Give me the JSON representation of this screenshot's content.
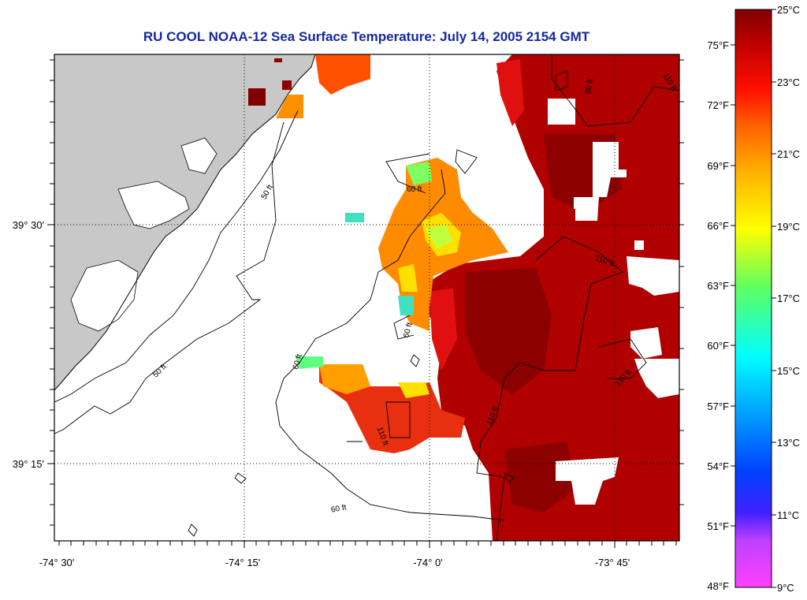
{
  "title": "RU COOL  NOAA-12  Sea Surface Temperature:  July 14, 2005 2154 GMT",
  "axes": {
    "x_ticks": [
      {
        "value": -74.5,
        "label": "-74° 30'"
      },
      {
        "value": -74.25,
        "label": "-74° 15'"
      },
      {
        "value": -74.0,
        "label": "-74° 0'"
      },
      {
        "value": -73.75,
        "label": "-73° 45'"
      }
    ],
    "y_ticks": [
      {
        "value": 39.5,
        "label": "39° 30'"
      },
      {
        "value": 39.25,
        "label": "39° 15'"
      }
    ]
  },
  "colorbar": {
    "celsius_labels": [
      "25°C",
      "23°C",
      "21°C",
      "19°C",
      "17°C",
      "15°C",
      "13°C",
      "11°C",
      "9°C"
    ],
    "fahrenheit_labels": [
      "75°F",
      "72°F",
      "69°F",
      "66°F",
      "63°F",
      "60°F",
      "57°F",
      "54°F",
      "51°F",
      "48°F"
    ],
    "colors": [
      "#ff40ff",
      "#8040ff",
      "#0000ff",
      "#00a0ff",
      "#00ffff",
      "#40ff80",
      "#c0ff00",
      "#ffff00",
      "#ffb000",
      "#ff6000",
      "#ff0000",
      "#c00000",
      "#800000"
    ]
  },
  "contour_labels": [
    {
      "text": "50 ft"
    },
    {
      "text": "50 ft"
    },
    {
      "text": "60 ft"
    },
    {
      "text": "60 ft"
    },
    {
      "text": "60 ft"
    },
    {
      "text": "60 ft"
    },
    {
      "text": "110 ft"
    },
    {
      "text": "110 ft"
    },
    {
      "text": "110 ft"
    },
    {
      "text": "110 ft"
    },
    {
      "text": "110 ft"
    },
    {
      "text": "80 ft"
    }
  ],
  "colors": {
    "land": "#c8c8c8",
    "title": "#1428a0",
    "warm": "#b00000",
    "hot": "#900000"
  }
}
